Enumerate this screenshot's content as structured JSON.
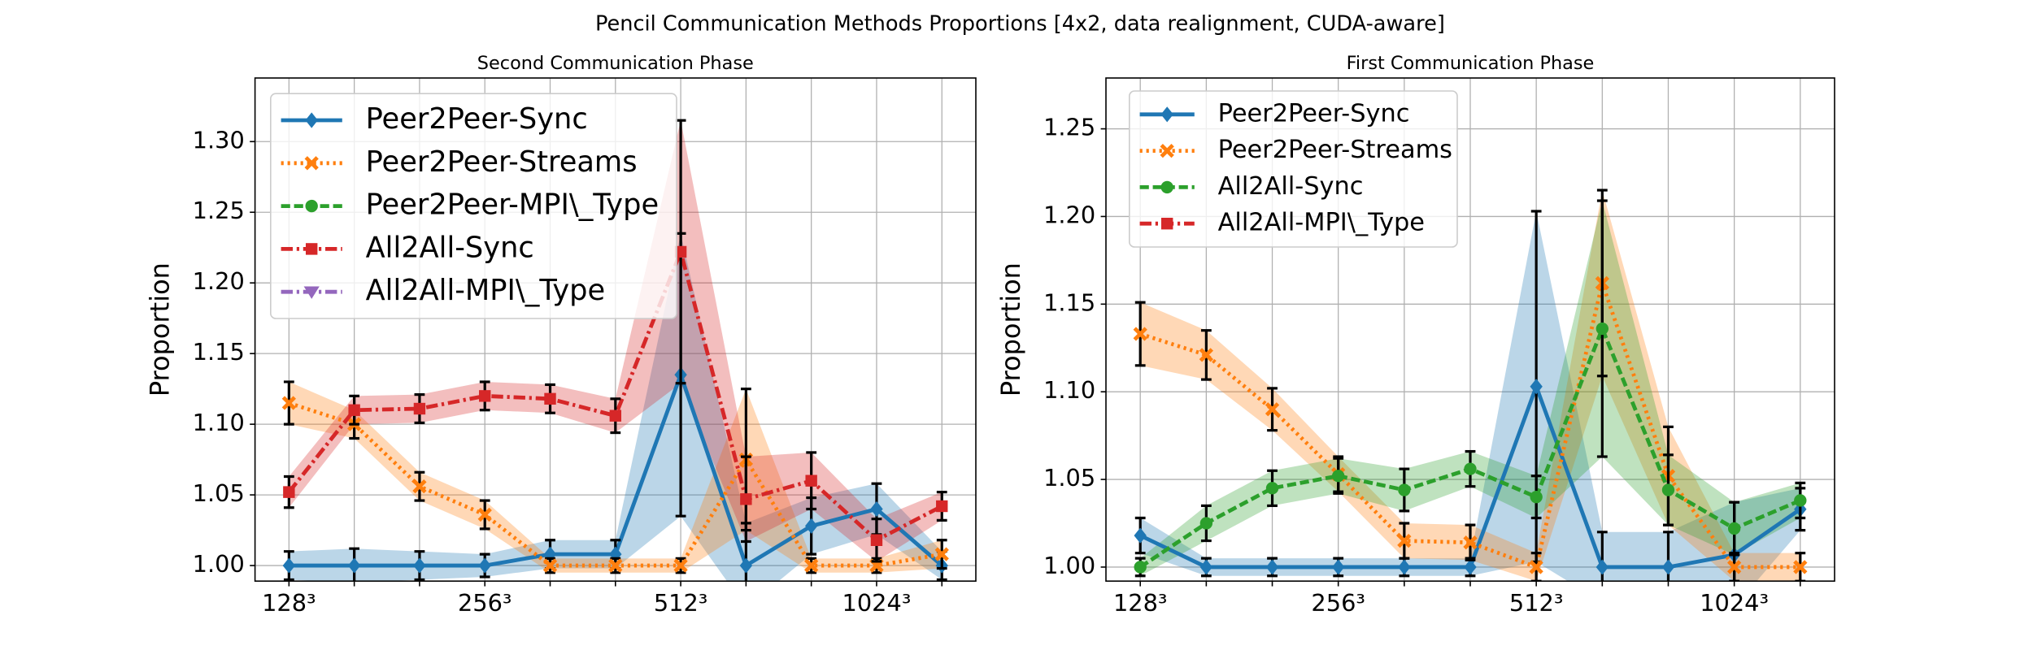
{
  "title": "Pencil Communication Methods Proportions [4x2, data realignment, CUDA-aware]",
  "chart_data": [
    {
      "type": "line",
      "title": "Second Communication Phase",
      "ylabel": "Proportion",
      "categories": [
        "128³",
        null,
        null,
        "256³",
        null,
        null,
        "512³",
        null,
        null,
        "1024³",
        null
      ],
      "ylim": [
        0.989,
        1.345
      ],
      "yticks": [
        {
          "value": 1.0,
          "label": "1.00"
        },
        {
          "value": 1.05,
          "label": "1.05"
        },
        {
          "value": 1.1,
          "label": "1.10"
        },
        {
          "value": 1.15,
          "label": "1.15"
        },
        {
          "value": 1.2,
          "label": "1.20"
        },
        {
          "value": 1.25,
          "label": "1.25"
        },
        {
          "value": 1.3,
          "label": "1.30"
        }
      ],
      "grid": true,
      "legend": "upper left",
      "series": [
        {
          "name": "Peer2Peer-Sync",
          "color": "#1f77b4",
          "linestyle": "solid",
          "marker": "diamond",
          "values": [
            1.0,
            1.0,
            1.0,
            1.0,
            1.008,
            1.008,
            1.135,
            1.0,
            1.028,
            1.04,
            1.0
          ],
          "errors": [
            0.01,
            0.012,
            0.01,
            0.008,
            0.01,
            0.01,
            0.1,
            0.03,
            0.02,
            0.018,
            0.01
          ]
        },
        {
          "name": "Peer2Peer-Streams",
          "color": "#ff7f0e",
          "linestyle": "dotted",
          "marker": "x",
          "values": [
            1.115,
            1.1,
            1.056,
            1.036,
            1.0,
            1.0,
            1.0,
            1.075,
            1.0,
            1.0,
            1.008
          ],
          "errors": [
            0.015,
            0.01,
            0.01,
            0.01,
            0.005,
            0.005,
            0.005,
            0.05,
            0.005,
            0.005,
            0.01
          ]
        },
        {
          "name": "Peer2Peer-MPI\\_Type",
          "color": "#2ca02c",
          "linestyle": "dashed",
          "marker": "circle",
          "values": [
            null,
            null,
            null,
            null,
            null,
            null,
            null,
            null,
            null,
            null,
            null
          ],
          "errors": [
            null,
            null,
            null,
            null,
            null,
            null,
            null,
            null,
            null,
            null,
            null
          ]
        },
        {
          "name": "All2All-Sync",
          "color": "#d62728",
          "linestyle": "dashdot",
          "marker": "square",
          "values": [
            1.052,
            1.11,
            1.111,
            1.12,
            1.118,
            1.106,
            1.222,
            1.047,
            1.06,
            1.018,
            1.042
          ],
          "errors": [
            0.011,
            0.01,
            0.01,
            0.01,
            0.01,
            0.012,
            0.093,
            0.03,
            0.02,
            0.015,
            0.01
          ]
        },
        {
          "name": "All2All-MPI\\_Type",
          "color": "#9467bd",
          "linestyle": "dashdot",
          "marker": "triangle-down",
          "values": [
            null,
            null,
            null,
            null,
            null,
            null,
            null,
            null,
            null,
            null,
            null
          ],
          "errors": [
            null,
            null,
            null,
            null,
            null,
            null,
            null,
            null,
            null,
            null,
            null
          ]
        }
      ]
    },
    {
      "type": "line",
      "title": "First Communication Phase",
      "ylabel": "Proportion",
      "categories": [
        "128³",
        null,
        null,
        "256³",
        null,
        null,
        "512³",
        null,
        null,
        "1024³",
        null
      ],
      "ylim": [
        0.992,
        1.279
      ],
      "yticks": [
        {
          "value": 1.0,
          "label": "1.00"
        },
        {
          "value": 1.05,
          "label": "1.05"
        },
        {
          "value": 1.1,
          "label": "1.10"
        },
        {
          "value": 1.15,
          "label": "1.15"
        },
        {
          "value": 1.2,
          "label": "1.20"
        },
        {
          "value": 1.25,
          "label": "1.25"
        }
      ],
      "grid": true,
      "legend": "upper left",
      "series": [
        {
          "name": "Peer2Peer-Sync",
          "color": "#1f77b4",
          "linestyle": "solid",
          "marker": "diamond",
          "values": [
            1.018,
            1.0,
            1.0,
            1.0,
            1.0,
            1.0,
            1.103,
            1.0,
            1.0,
            1.007,
            1.033
          ],
          "errors": [
            0.01,
            0.005,
            0.005,
            0.005,
            0.005,
            0.005,
            0.1,
            0.02,
            0.02,
            0.03,
            0.012
          ]
        },
        {
          "name": "Peer2Peer-Streams",
          "color": "#ff7f0e",
          "linestyle": "dotted",
          "marker": "x",
          "values": [
            1.133,
            1.121,
            1.09,
            1.053,
            1.015,
            1.014,
            1.0,
            1.162,
            1.052,
            1.0,
            1.0
          ],
          "errors": [
            0.018,
            0.014,
            0.012,
            0.01,
            0.01,
            0.01,
            0.008,
            0.053,
            0.028,
            0.008,
            0.008
          ]
        },
        {
          "name": "All2All-Sync",
          "color": "#2ca02c",
          "linestyle": "dashed",
          "marker": "circle",
          "values": [
            1.0,
            1.025,
            1.045,
            1.052,
            1.044,
            1.056,
            1.04,
            1.136,
            1.044,
            1.022,
            1.038
          ],
          "errors": [
            0.005,
            0.01,
            0.01,
            0.01,
            0.012,
            0.01,
            0.012,
            0.073,
            0.02,
            0.015,
            0.01
          ]
        },
        {
          "name": "All2All-MPI\\_Type",
          "color": "#d62728",
          "linestyle": "dashdot",
          "marker": "square",
          "values": [
            null,
            null,
            null,
            null,
            null,
            null,
            null,
            null,
            null,
            null,
            null
          ],
          "errors": [
            null,
            null,
            null,
            null,
            null,
            null,
            null,
            null,
            null,
            null,
            null
          ]
        }
      ]
    }
  ]
}
